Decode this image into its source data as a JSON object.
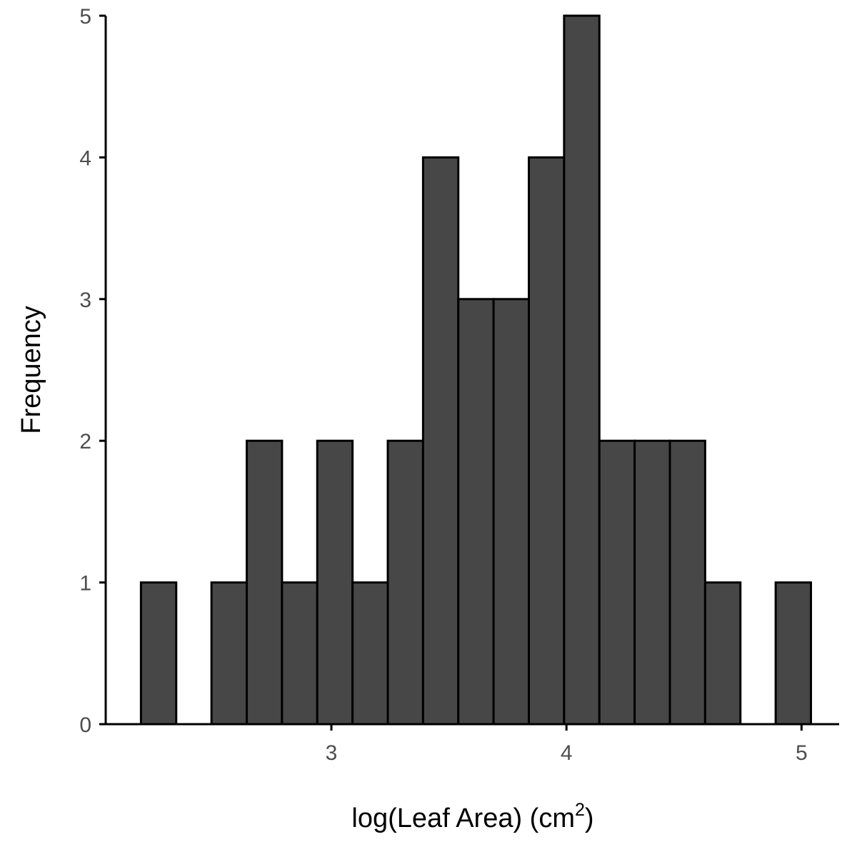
{
  "chart_data": {
    "type": "bar",
    "title": "",
    "xlabel": "log(Leaf Area) (cm",
    "xlabel_superscript": "2",
    "xlabel_suffix": ")",
    "ylabel": "Frequency",
    "xlim": [
      2.04,
      5.16
    ],
    "ylim": [
      0,
      5
    ],
    "bin_width": 0.15,
    "bins": [
      {
        "x0": 2.19,
        "x1": 2.34,
        "count": 1
      },
      {
        "x0": 2.34,
        "x1": 2.49,
        "count": 0
      },
      {
        "x0": 2.49,
        "x1": 2.64,
        "count": 1
      },
      {
        "x0": 2.64,
        "x1": 2.79,
        "count": 2
      },
      {
        "x0": 2.79,
        "x1": 2.94,
        "count": 1
      },
      {
        "x0": 2.94,
        "x1": 3.09,
        "count": 2
      },
      {
        "x0": 3.09,
        "x1": 3.24,
        "count": 1
      },
      {
        "x0": 3.24,
        "x1": 3.39,
        "count": 2
      },
      {
        "x0": 3.39,
        "x1": 3.54,
        "count": 4
      },
      {
        "x0": 3.54,
        "x1": 3.69,
        "count": 3
      },
      {
        "x0": 3.69,
        "x1": 3.84,
        "count": 3
      },
      {
        "x0": 3.84,
        "x1": 3.99,
        "count": 4
      },
      {
        "x0": 3.99,
        "x1": 4.14,
        "count": 5
      },
      {
        "x0": 4.14,
        "x1": 4.29,
        "count": 2
      },
      {
        "x0": 4.29,
        "x1": 4.44,
        "count": 2
      },
      {
        "x0": 4.44,
        "x1": 4.59,
        "count": 2
      },
      {
        "x0": 4.59,
        "x1": 4.74,
        "count": 1
      },
      {
        "x0": 4.74,
        "x1": 4.89,
        "count": 0
      },
      {
        "x0": 4.89,
        "x1": 5.04,
        "count": 1
      }
    ],
    "x_ticks": [
      3,
      4,
      5
    ],
    "y_ticks": [
      0,
      1,
      2,
      3,
      4,
      5
    ],
    "grid": false,
    "legend": "none",
    "bar_fill": "#474747",
    "bar_stroke": "#000000"
  }
}
